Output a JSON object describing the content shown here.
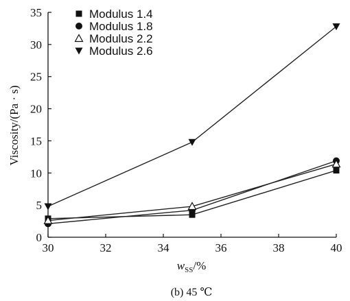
{
  "chart_data": {
    "type": "line",
    "x": [
      30,
      35,
      40
    ],
    "xlim": [
      30,
      40
    ],
    "ylim": [
      0,
      35
    ],
    "xticks": [
      30,
      32,
      34,
      36,
      38,
      40
    ],
    "yticks": [
      0,
      5,
      10,
      15,
      20,
      25,
      30,
      35
    ],
    "xlabel": "w",
    "xlabel_sub": "SS",
    "xlabel_unit": "/%",
    "ylabel": "Viscosity/(Pa · s)",
    "caption": "(b) 45 ℃",
    "legend_position": "top-left",
    "grid": false,
    "series": [
      {
        "name": "Modulus 1.4",
        "marker": "square",
        "values": [
          2.9,
          3.5,
          10.4
        ]
      },
      {
        "name": "Modulus 1.8",
        "marker": "circle",
        "values": [
          2.1,
          4.2,
          11.9
        ]
      },
      {
        "name": "Modulus 2.2",
        "marker": "triangle-up-open",
        "values": [
          2.6,
          4.8,
          11.4
        ]
      },
      {
        "name": "Modulus 2.6",
        "marker": "triangle-down",
        "values": [
          4.8,
          14.8,
          32.8
        ]
      }
    ]
  }
}
